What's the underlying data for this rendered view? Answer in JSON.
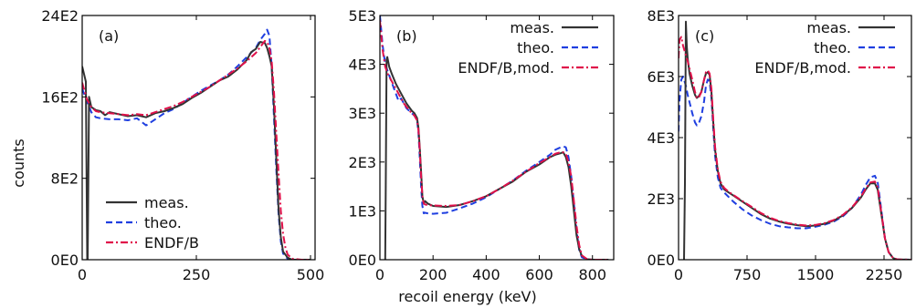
{
  "figure": {
    "ylabel": "counts",
    "xlabel": "recoil energy (keV)"
  },
  "chart_data": [
    {
      "type": "line",
      "panel_label": "(a)",
      "xlim": [
        0,
        510
      ],
      "ylim": [
        0,
        2400
      ],
      "xticks": [
        0,
        250,
        500
      ],
      "xtick_labels": [
        "0",
        "250",
        "500"
      ],
      "yticks": [
        0,
        800,
        1600,
        2400
      ],
      "ytick_labels": [
        "0E0",
        "8E2",
        "16E2",
        "24E2"
      ],
      "legend": {
        "placement": "bottom-left",
        "entries": [
          "meas.",
          "theo.",
          "ENDF/B"
        ]
      },
      "series": [
        {
          "name": "meas.",
          "color": "#333333",
          "style": "solid",
          "x": [
            0,
            8,
            11,
            12,
            15,
            20,
            30,
            40,
            50,
            60,
            80,
            100,
            120,
            140,
            160,
            180,
            200,
            220,
            240,
            260,
            280,
            300,
            320,
            340,
            360,
            370,
            380,
            390,
            400,
            405,
            410,
            415,
            420,
            425,
            430,
            435,
            440,
            450,
            460,
            480,
            500
          ],
          "y": [
            1900,
            1750,
            0,
            0,
            1600,
            1500,
            1470,
            1460,
            1420,
            1450,
            1430,
            1410,
            1420,
            1400,
            1440,
            1460,
            1490,
            1530,
            1590,
            1640,
            1700,
            1760,
            1800,
            1870,
            1960,
            2040,
            2070,
            2140,
            2130,
            2080,
            2000,
            1900,
            1500,
            1000,
            500,
            220,
            80,
            20,
            0,
            0,
            0
          ]
        },
        {
          "name": "theo.",
          "color": "#1f3fe0",
          "style": "dashed",
          "x": [
            0,
            10,
            20,
            30,
            40,
            60,
            80,
            100,
            120,
            140,
            160,
            180,
            200,
            220,
            240,
            260,
            280,
            300,
            320,
            340,
            360,
            380,
            390,
            400,
            405,
            410,
            415,
            420,
            425,
            430,
            435,
            440,
            450,
            460,
            480,
            500
          ],
          "y": [
            1680,
            1560,
            1450,
            1400,
            1390,
            1380,
            1380,
            1370,
            1390,
            1320,
            1380,
            1440,
            1480,
            1540,
            1600,
            1660,
            1710,
            1760,
            1820,
            1900,
            1990,
            2080,
            2160,
            2220,
            2260,
            2200,
            1900,
            1400,
            900,
            450,
            180,
            60,
            10,
            0,
            0,
            0
          ]
        },
        {
          "name": "ENDF/B",
          "color": "#e0114a",
          "style": "dashdot",
          "x": [
            0,
            10,
            20,
            30,
            40,
            60,
            80,
            100,
            120,
            140,
            160,
            180,
            200,
            220,
            240,
            260,
            280,
            300,
            320,
            340,
            360,
            380,
            390,
            400,
            405,
            410,
            415,
            420,
            425,
            430,
            435,
            440,
            445,
            450,
            460,
            480,
            500
          ],
          "y": [
            1740,
            1580,
            1500,
            1460,
            1450,
            1440,
            1430,
            1420,
            1430,
            1420,
            1450,
            1480,
            1510,
            1550,
            1600,
            1650,
            1700,
            1760,
            1820,
            1880,
            1950,
            2030,
            2090,
            2150,
            2140,
            2080,
            1950,
            1650,
            1250,
            850,
            480,
            250,
            120,
            50,
            10,
            0,
            0
          ]
        }
      ]
    },
    {
      "type": "line",
      "panel_label": "(b)",
      "xlim": [
        0,
        880
      ],
      "ylim": [
        0,
        5000
      ],
      "xticks": [
        0,
        200,
        400,
        600,
        800
      ],
      "xtick_labels": [
        "0",
        "200",
        "400",
        "600",
        "800"
      ],
      "yticks": [
        0,
        1000,
        2000,
        3000,
        4000,
        5000
      ],
      "ytick_labels": [
        "0E0",
        "1E3",
        "2E3",
        "3E3",
        "4E3",
        "5E3"
      ],
      "legend": {
        "placement": "top-right",
        "entries": [
          "meas.",
          "theo.",
          "ENDF/B,mod."
        ]
      },
      "series": [
        {
          "name": "meas.",
          "color": "#333333",
          "style": "solid",
          "x": [
            20,
            22,
            25,
            28,
            35,
            45,
            60,
            80,
            100,
            120,
            130,
            140,
            145,
            150,
            155,
            160,
            165,
            170,
            180,
            200,
            250,
            300,
            350,
            400,
            450,
            500,
            550,
            600,
            640,
            660,
            680,
            690,
            700,
            710,
            720,
            730,
            740,
            750,
            760,
            780,
            800,
            860
          ],
          "y": [
            0,
            1500,
            4100,
            4150,
            3950,
            3800,
            3600,
            3400,
            3200,
            3050,
            3000,
            2900,
            2700,
            2300,
            1800,
            1300,
            1150,
            1200,
            1150,
            1100,
            1080,
            1120,
            1200,
            1300,
            1450,
            1600,
            1800,
            1950,
            2100,
            2150,
            2180,
            2200,
            2100,
            1900,
            1500,
            1000,
            500,
            220,
            80,
            10,
            0,
            0
          ]
        },
        {
          "name": "theo.",
          "color": "#1f3fe0",
          "style": "dashed",
          "x": [
            0,
            10,
            20,
            30,
            40,
            50,
            60,
            70,
            80,
            90,
            100,
            110,
            120,
            130,
            140,
            145,
            150,
            155,
            160,
            165,
            170,
            180,
            200,
            250,
            300,
            350,
            400,
            450,
            500,
            550,
            600,
            640,
            660,
            680,
            690,
            700,
            710,
            720,
            730,
            740,
            750,
            760,
            780,
            800,
            860
          ],
          "y": [
            5000,
            4400,
            4000,
            3850,
            3700,
            3550,
            3400,
            3250,
            3300,
            3200,
            3100,
            3050,
            3000,
            2950,
            2850,
            2600,
            2100,
            1500,
            1100,
            950,
            960,
            950,
            940,
            960,
            1050,
            1150,
            1280,
            1450,
            1620,
            1820,
            2000,
            2150,
            2250,
            2300,
            2320,
            2300,
            2100,
            1700,
            1150,
            600,
            200,
            50,
            5,
            0,
            0
          ]
        },
        {
          "name": "ENDF/B,mod.",
          "color": "#e0114a",
          "style": "dashdot",
          "x": [
            0,
            10,
            20,
            30,
            40,
            50,
            60,
            70,
            80,
            90,
            100,
            110,
            120,
            130,
            140,
            145,
            150,
            155,
            160,
            165,
            170,
            180,
            200,
            250,
            300,
            350,
            400,
            450,
            500,
            550,
            600,
            640,
            660,
            680,
            690,
            700,
            710,
            720,
            730,
            740,
            750,
            760,
            780,
            800,
            860
          ],
          "y": [
            4900,
            4300,
            3950,
            3800,
            3700,
            3600,
            3500,
            3400,
            3300,
            3200,
            3130,
            3060,
            3000,
            2950,
            2850,
            2650,
            2250,
            1700,
            1300,
            1150,
            1130,
            1120,
            1110,
            1100,
            1120,
            1200,
            1300,
            1450,
            1620,
            1800,
            1980,
            2100,
            2170,
            2200,
            2200,
            2170,
            2000,
            1700,
            1200,
            700,
            300,
            90,
            10,
            0,
            0
          ]
        }
      ]
    },
    {
      "type": "line",
      "panel_label": "(c)",
      "xlim": [
        0,
        2550
      ],
      "ylim": [
        0,
        8000
      ],
      "xticks": [
        0,
        750,
        1500,
        2250
      ],
      "xtick_labels": [
        "0",
        "750",
        "1500",
        "2250"
      ],
      "yticks": [
        0,
        2000,
        4000,
        6000,
        8000
      ],
      "ytick_labels": [
        "0E0",
        "2E3",
        "4E3",
        "6E3",
        "8E3"
      ],
      "legend": {
        "placement": "top-right",
        "entries": [
          "meas.",
          "theo.",
          "ENDF/B,mod."
        ]
      },
      "series": [
        {
          "name": "meas.",
          "color": "#333333",
          "style": "solid",
          "x": [
            60,
            70,
            80,
            90,
            100,
            120,
            150,
            180,
            200,
            220,
            250,
            280,
            300,
            320,
            340,
            360,
            380,
            400,
            430,
            460,
            500,
            550,
            600,
            700,
            800,
            900,
            1000,
            1100,
            1200,
            1300,
            1400,
            1500,
            1600,
            1700,
            1800,
            1900,
            2000,
            2050,
            2100,
            2150,
            2180,
            2200,
            2230,
            2260,
            2300,
            2350,
            2400,
            2550
          ],
          "y": [
            0,
            2500,
            7800,
            7000,
            6600,
            6100,
            5700,
            5400,
            5300,
            5350,
            5500,
            5900,
            6100,
            6150,
            6050,
            5500,
            4500,
            3600,
            2900,
            2500,
            2300,
            2200,
            2100,
            1900,
            1700,
            1500,
            1350,
            1250,
            1180,
            1130,
            1100,
            1120,
            1180,
            1280,
            1450,
            1700,
            2050,
            2300,
            2500,
            2500,
            2300,
            1900,
            1300,
            700,
            250,
            50,
            5,
            0
          ]
        },
        {
          "name": "theo.",
          "color": "#1f3fe0",
          "style": "dashed",
          "x": [
            0,
            10,
            30,
            50,
            80,
            100,
            150,
            180,
            200,
            220,
            250,
            280,
            300,
            320,
            340,
            360,
            380,
            400,
            430,
            460,
            500,
            550,
            600,
            700,
            800,
            900,
            1000,
            1100,
            1200,
            1300,
            1400,
            1500,
            1600,
            1700,
            1800,
            1900,
            2000,
            2050,
            2100,
            2150,
            2180,
            2200,
            2230,
            2260,
            2300,
            2350,
            2400,
            2550
          ],
          "y": [
            4200,
            5200,
            5900,
            6000,
            5700,
            5400,
            4800,
            4500,
            4400,
            4450,
            4700,
            5200,
            5700,
            5900,
            5850,
            5300,
            4300,
            3400,
            2700,
            2350,
            2200,
            2050,
            1900,
            1650,
            1450,
            1300,
            1180,
            1100,
            1060,
            1030,
            1030,
            1080,
            1150,
            1250,
            1420,
            1700,
            2150,
            2450,
            2700,
            2750,
            2550,
            2100,
            1400,
            700,
            250,
            50,
            5,
            0
          ]
        },
        {
          "name": "ENDF/B,mod.",
          "color": "#e0114a",
          "style": "dashdot",
          "x": [
            0,
            10,
            30,
            50,
            80,
            100,
            150,
            180,
            200,
            220,
            250,
            280,
            300,
            320,
            340,
            360,
            380,
            400,
            430,
            460,
            500,
            550,
            600,
            700,
            800,
            900,
            1000,
            1100,
            1200,
            1300,
            1400,
            1500,
            1600,
            1700,
            1800,
            1900,
            2000,
            2050,
            2100,
            2150,
            2180,
            2200,
            2230,
            2260,
            2300,
            2350,
            2400,
            2550
          ],
          "y": [
            6600,
            7200,
            7300,
            7000,
            6700,
            6500,
            5900,
            5500,
            5300,
            5300,
            5500,
            5900,
            6150,
            6200,
            6100,
            5600,
            4600,
            3700,
            2950,
            2550,
            2350,
            2220,
            2120,
            1920,
            1730,
            1530,
            1380,
            1270,
            1200,
            1150,
            1120,
            1140,
            1200,
            1300,
            1470,
            1720,
            2080,
            2330,
            2530,
            2560,
            2380,
            1980,
            1350,
            700,
            250,
            50,
            5,
            0
          ]
        }
      ]
    }
  ]
}
